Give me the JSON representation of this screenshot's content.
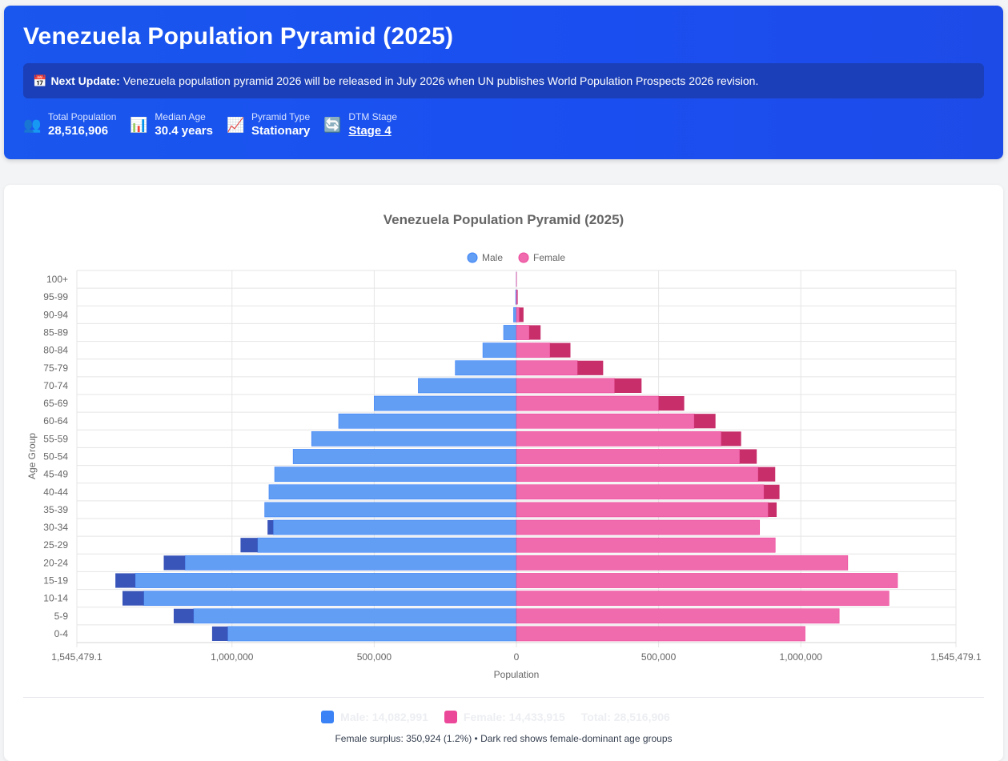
{
  "header": {
    "title": "Venezuela Population Pyramid (2025)",
    "notice_icon": "calendar-icon",
    "notice_label": "Next Update:",
    "notice_text": "Venezuela population pyramid 2026 will be released in July 2026 when UN publishes World Population Prospects 2026 revision.",
    "stats": [
      {
        "icon": "people-icon",
        "glyph": "👥",
        "label": "Total Population",
        "value": "28,516,906"
      },
      {
        "icon": "bar-chart-icon",
        "glyph": "📊",
        "label": "Median Age",
        "value": "30.4 years"
      },
      {
        "icon": "trend-chart-icon",
        "glyph": "📈",
        "label": "Pyramid Type",
        "value": "Stationary"
      },
      {
        "icon": "cycle-icon",
        "glyph": "🔄",
        "label": "DTM Stage",
        "value": "Stage 4"
      }
    ]
  },
  "colors": {
    "male": "#639ef5",
    "male_surplus": "#3955b9",
    "female": "#f06aae",
    "female_surplus": "#c72e6a"
  },
  "chart_data": {
    "type": "bar",
    "orientation": "horizontal-pyramid",
    "title": "Venezuela Population Pyramid (2025)",
    "xlabel": "Population",
    "ylabel": "Age Group",
    "xlim": [
      -1545479.1,
      1545479.1
    ],
    "x_ticks": [
      -1545479.1,
      -1000000,
      -500000,
      0,
      500000,
      1000000,
      1545479.1
    ],
    "x_tick_labels": [
      "1,545,479.1",
      "1,000,000",
      "500,000",
      "0",
      "500,000",
      "1,000,000",
      "1,545,479.1"
    ],
    "legend": [
      "Male",
      "Female"
    ],
    "legend_position": "top",
    "grid": true,
    "categories": [
      "100+",
      "95-99",
      "90-94",
      "85-89",
      "80-84",
      "75-79",
      "70-74",
      "65-69",
      "60-64",
      "55-59",
      "50-54",
      "45-49",
      "40-44",
      "35-39",
      "30-34",
      "25-29",
      "20-24",
      "15-19",
      "10-14",
      "5-9",
      "0-4"
    ],
    "series": [
      {
        "name": "Male",
        "values": [
          500,
          2500,
          10000,
          45000,
          118000,
          215000,
          345000,
          500000,
          625000,
          720000,
          785000,
          850000,
          870000,
          885000,
          875000,
          970000,
          1240000,
          1410000,
          1385000,
          1205000,
          1070000
        ]
      },
      {
        "name": "Female",
        "values": [
          1000,
          4500,
          25000,
          85000,
          190000,
          305000,
          440000,
          590000,
          700000,
          790000,
          845000,
          910000,
          925000,
          915000,
          855000,
          910000,
          1165000,
          1340000,
          1310000,
          1135000,
          1015000
        ]
      }
    ]
  },
  "summary": {
    "male": "Male: 14,082,991",
    "female": "Female: 14,433,915",
    "total": "Total: 28,516,906",
    "note": "Female surplus: 350,924 (1.2%) • Dark red shows female-dominant age groups"
  }
}
